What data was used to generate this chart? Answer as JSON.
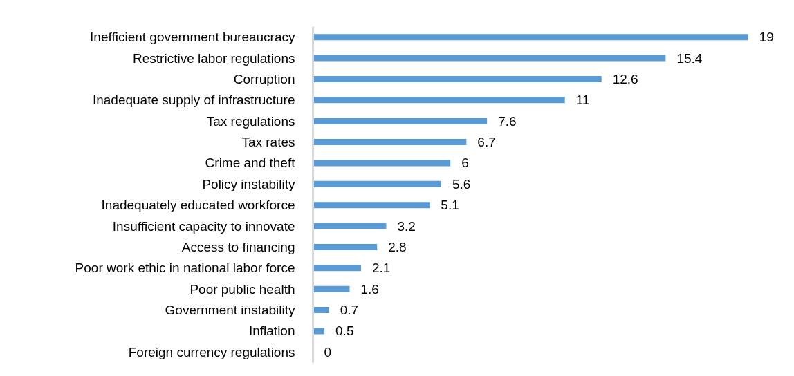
{
  "chart_data": {
    "type": "bar",
    "orientation": "horizontal",
    "categories": [
      "Inefficient government bureaucracy",
      "Restrictive labor regulations",
      "Corruption",
      "Inadequate supply of infrastructure",
      "Tax regulations",
      "Tax rates",
      "Crime and theft",
      "Policy instability",
      "Inadequately educated workforce",
      "Insufficient capacity to innovate",
      "Access to financing",
      "Poor work ethic in national labor force",
      "Poor public health",
      "Government instability",
      "Inflation",
      "Foreign currency regulations"
    ],
    "values": [
      19,
      15.4,
      12.6,
      11,
      7.6,
      6.7,
      6,
      5.6,
      5.1,
      3.2,
      2.8,
      2.1,
      1.6,
      0.7,
      0.5,
      0
    ],
    "color": "#5b9bd5",
    "data_labels": true,
    "tick_labels": "y",
    "grid": false
  }
}
